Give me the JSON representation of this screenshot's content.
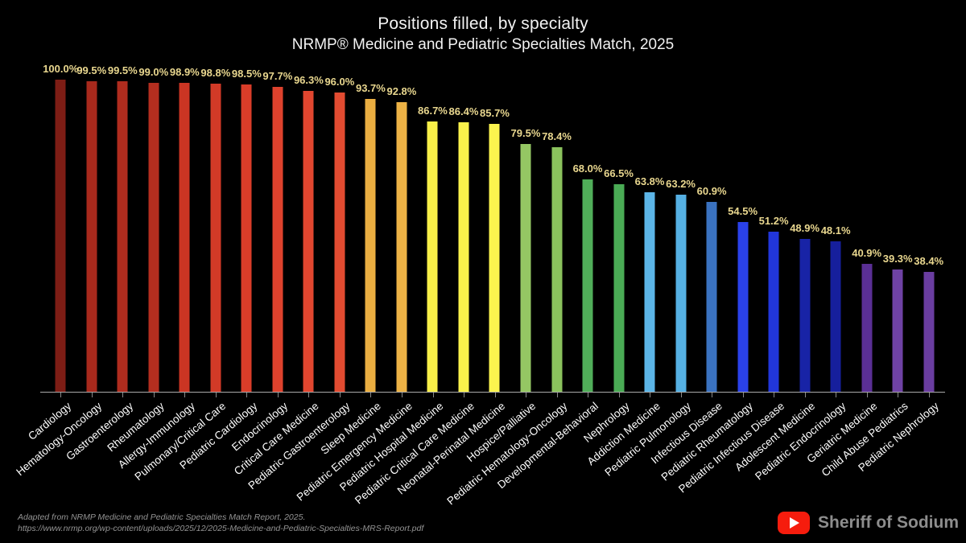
{
  "header": {
    "title": "Positions filled, by specialty",
    "subtitle": "NRMP® Medicine and Pediatric Specialties Match, 2025"
  },
  "chart_data": {
    "type": "bar",
    "title": "Positions filled, by specialty",
    "subtitle": "NRMP® Medicine and Pediatric Specialties Match, 2025",
    "xlabel": "",
    "ylabel": "",
    "ylim": [
      0,
      100
    ],
    "grid": false,
    "legend": false,
    "background": "#000000",
    "value_label_color": "#e9d78f",
    "axis_line_color": "#a9a9a9",
    "value_suffix": "%",
    "categories": [
      "Cardiology",
      "Hematology-Oncology",
      "Gastroenterology",
      "Rheumatology",
      "Allergy-Immunology",
      "Pulmonary/Critical Care",
      "Pediatric Cardiology",
      "Endocrinology",
      "Critical Care Medicine",
      "Pediatric Gastroenterology",
      "Sleep Medicine",
      "Pediatric Emergency Medicine",
      "Pediatric Hospital Medicine",
      "Pediatric Critical Care Medicine",
      "Neonatal-Perinatal Medicine",
      "Hospice/Palliative",
      "Pediatric Hematology-Oncology",
      "Developmental-Behavioral",
      "Nephrology",
      "Addiction Medicine",
      "Pediatric Pulmonology",
      "Infectious Disease",
      "Pediatric Rheumatology",
      "Pediatric Infectious Disease",
      "Adolescent Medicine",
      "Pediatric Endocrinology",
      "Geriatric Medicine",
      "Child Abuse Pediatrics",
      "Pediatric Nephrology"
    ],
    "values": [
      100.0,
      99.5,
      99.5,
      99.0,
      98.9,
      98.8,
      98.5,
      97.7,
      96.3,
      96.0,
      93.7,
      92.8,
      86.7,
      86.4,
      85.7,
      79.5,
      78.4,
      68.0,
      66.5,
      63.8,
      63.2,
      60.9,
      54.5,
      51.2,
      48.9,
      48.1,
      40.9,
      39.3,
      38.4
    ],
    "bar_colors": [
      "#7d1d15",
      "#a8291c",
      "#b02c1e",
      "#b32e1f",
      "#cb3523",
      "#d23a27",
      "#d93d29",
      "#de422d",
      "#e1462f",
      "#e24b31",
      "#eaae41",
      "#edb245",
      "#f8ef48",
      "#faf24b",
      "#fbf44e",
      "#95c763",
      "#8bc35d",
      "#50ae59",
      "#4aab55",
      "#5cb5e7",
      "#55b0e3",
      "#3a72c0",
      "#2a41ea",
      "#2136da",
      "#1823a6",
      "#161f9c",
      "#5a2f95",
      "#6f42a4",
      "#6a3da0"
    ]
  },
  "footer": {
    "source_line1": "Adapted from NRMP Medicine and Pediatric Specialties Match Report, 2025.",
    "source_line2": "https://www.nrmp.org/wp-content/uploads/2025/12/2025-Medicine-and-Pediatric-Specialties-MRS-Report.pdf"
  },
  "branding": {
    "channel_name": "Sheriff of Sodium",
    "youtube_icon": "youtube-play-icon",
    "youtube_icon_color": "#f61c0d"
  }
}
